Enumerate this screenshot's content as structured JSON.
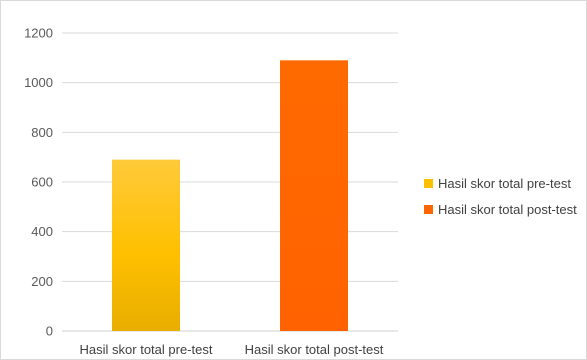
{
  "chart_data": {
    "type": "bar",
    "categories": [
      "Hasil skor total pre-test",
      "Hasil skor total post-test"
    ],
    "series": [
      {
        "name": "Hasil skor total pre-test",
        "values": [
          690,
          null
        ],
        "color": "#FFC000"
      },
      {
        "name": "Hasil skor total post-test",
        "values": [
          null,
          1090
        ],
        "color": "#FF6600"
      }
    ],
    "values": [
      690,
      1090
    ],
    "yticks": [
      "0",
      "200",
      "400",
      "600",
      "800",
      "1000",
      "1200"
    ],
    "ylim": [
      0,
      1200
    ],
    "grid": true,
    "legend_position": "right"
  },
  "legend": {
    "items": [
      {
        "label": "Hasil skor total pre-test",
        "color": "#FFC000"
      },
      {
        "label": "Hasil skor total post-test",
        "color": "#FF6600"
      }
    ]
  }
}
